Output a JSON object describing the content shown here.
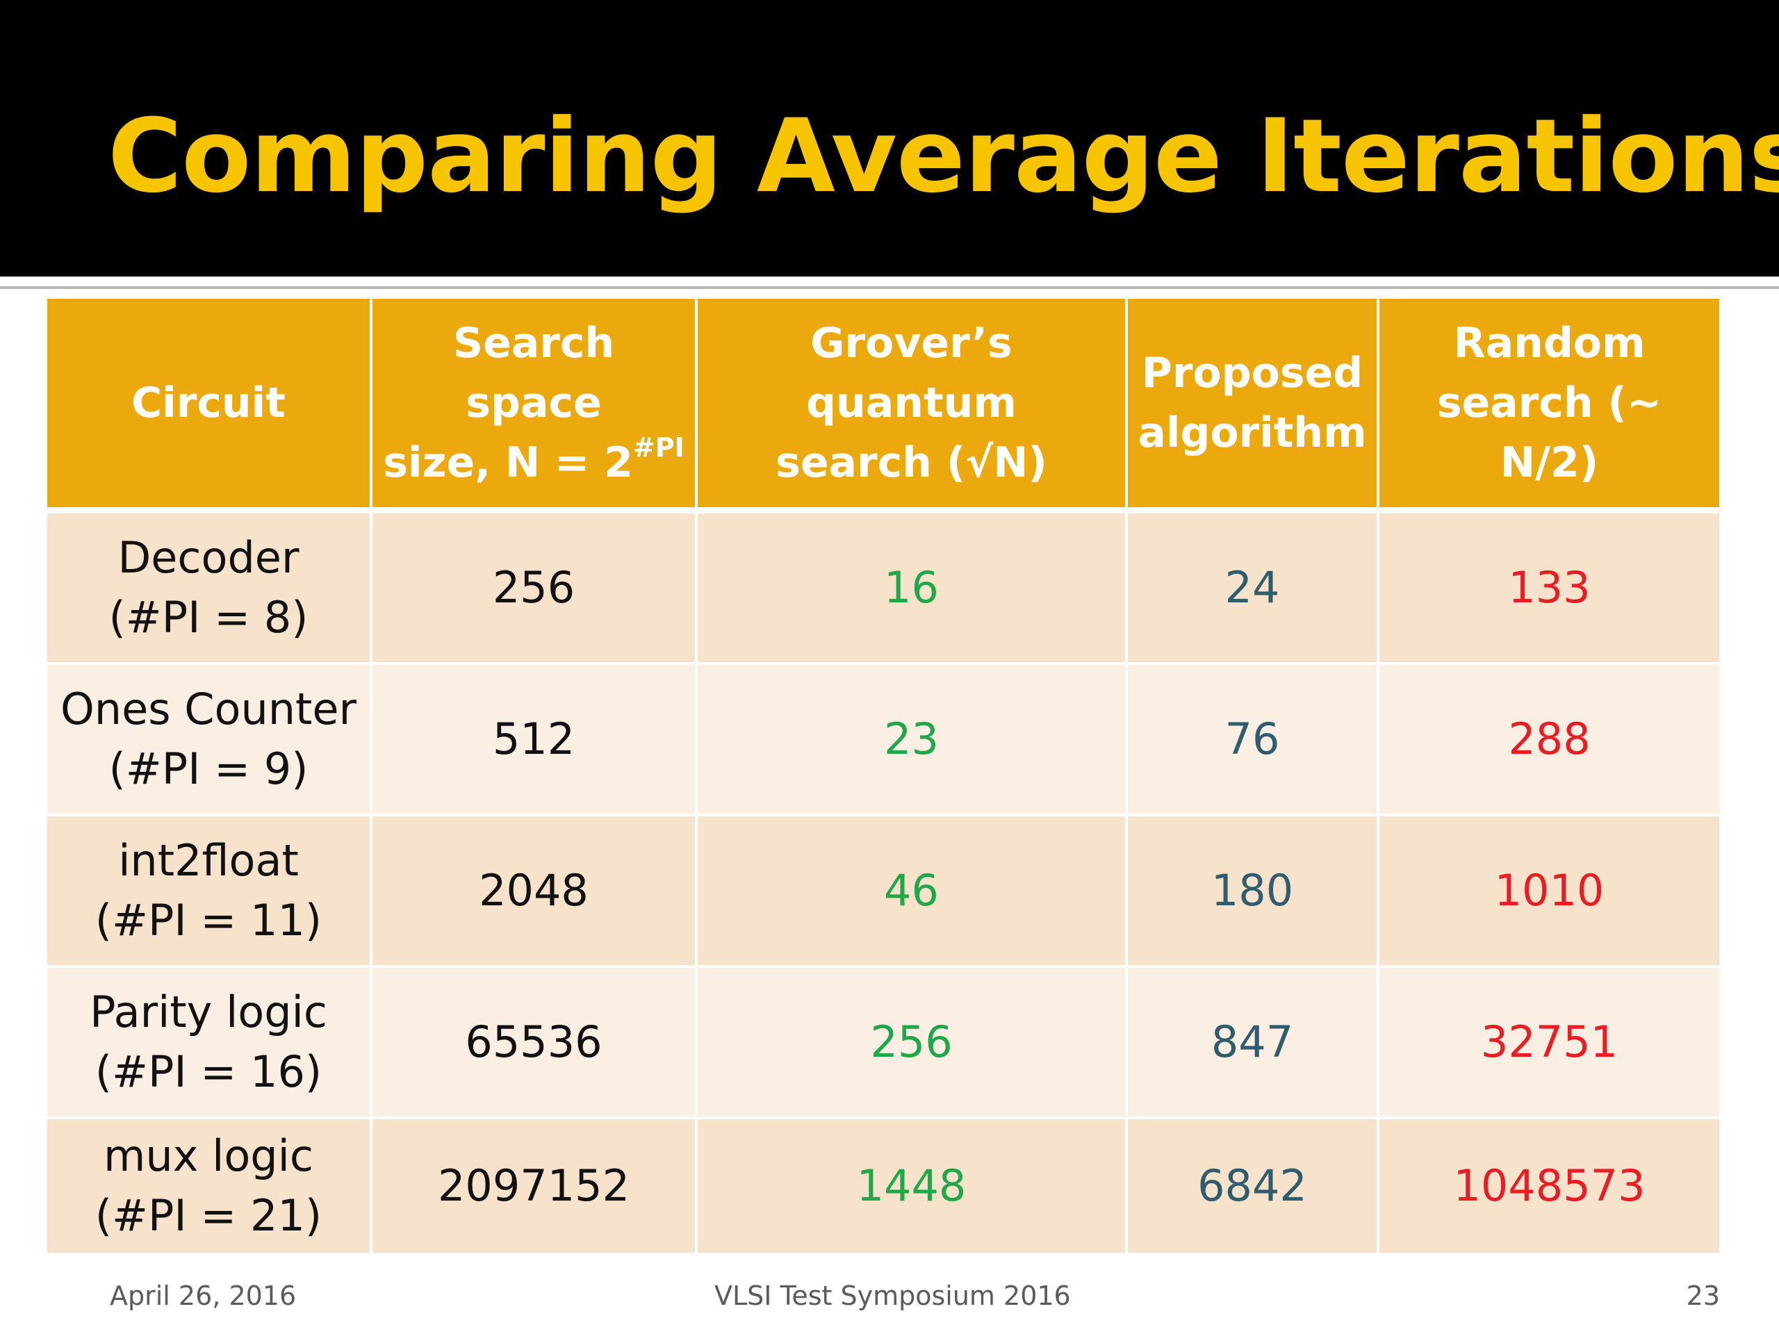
{
  "title": "Comparing Average Iterations",
  "table": {
    "header": {
      "circuit": [
        "Circuit"
      ],
      "search_space": [
        "Search space",
        "size, N = 2",
        "#PI"
      ],
      "grover": [
        "Grover’s quantum",
        "search  (√N)"
      ],
      "proposed": [
        "Proposed",
        "algorithm"
      ],
      "random": [
        "Random",
        "search (~ N/2)"
      ]
    },
    "rows": [
      {
        "circuit": [
          "Decoder",
          "(#PI = 8)"
        ],
        "search_space": "256",
        "grover": "16",
        "proposed": "24",
        "random": "133"
      },
      {
        "circuit": [
          "Ones Counter",
          "(#PI = 9)"
        ],
        "search_space": "512",
        "grover": "23",
        "proposed": "76",
        "random": "288"
      },
      {
        "circuit": [
          "int2float",
          "(#PI = 11)"
        ],
        "search_space": "2048",
        "grover": "46",
        "proposed": "180",
        "random": "1010"
      },
      {
        "circuit": [
          "Parity logic",
          "(#PI = 16)"
        ],
        "search_space": "65536",
        "grover": "256",
        "proposed": "847",
        "random": "32751"
      },
      {
        "circuit": [
          "mux logic",
          "(#PI = 21)"
        ],
        "search_space": "2097152",
        "grover": "1448",
        "proposed": "6842",
        "random": "1048573"
      }
    ]
  },
  "footer": {
    "date": "April 26, 2016",
    "event": "VLSI Test Symposium 2016",
    "page": "23"
  },
  "colors": {
    "title_band": "#000000",
    "title_text": "#f7c500",
    "header_fill": "#eca90d",
    "row_dark": "#f7e2cb",
    "row_light": "#fbeee3",
    "grover_text": "#1fa84a",
    "proposed_text": "#2f5d6e",
    "random_text": "#ea1c24"
  }
}
